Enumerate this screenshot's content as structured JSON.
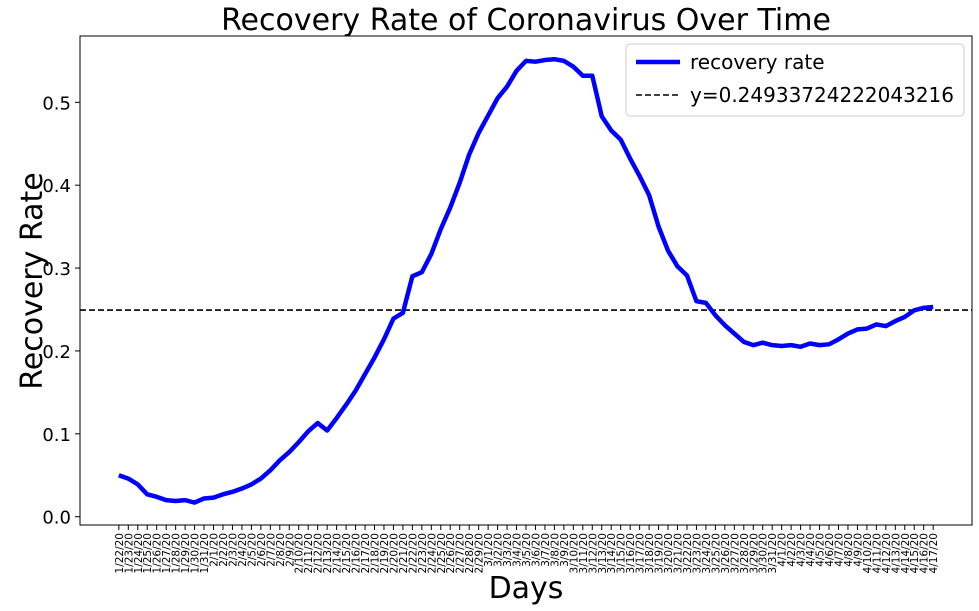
{
  "chart_data": {
    "type": "line",
    "title": "Recovery Rate of Coronavirus Over Time",
    "x_label": "Days",
    "y_label": "Recovery Rate",
    "categories": [
      "1/22/20",
      "1/23/20",
      "1/24/20",
      "1/25/20",
      "1/26/20",
      "1/27/20",
      "1/28/20",
      "1/29/20",
      "1/30/20",
      "1/31/20",
      "2/1/20",
      "2/2/20",
      "2/3/20",
      "2/4/20",
      "2/5/20",
      "2/6/20",
      "2/7/20",
      "2/8/20",
      "2/9/20",
      "2/10/20",
      "2/11/20",
      "2/12/20",
      "2/13/20",
      "2/14/20",
      "2/15/20",
      "2/16/20",
      "2/17/20",
      "2/18/20",
      "2/19/20",
      "2/20/20",
      "2/21/20",
      "2/22/20",
      "2/23/20",
      "2/24/20",
      "2/25/20",
      "2/26/20",
      "2/27/20",
      "2/28/20",
      "2/29/20",
      "3/1/20",
      "3/2/20",
      "3/3/20",
      "3/4/20",
      "3/5/20",
      "3/6/20",
      "3/7/20",
      "3/8/20",
      "3/9/20",
      "3/10/20",
      "3/11/20",
      "3/12/20",
      "3/13/20",
      "3/14/20",
      "3/15/20",
      "3/16/20",
      "3/17/20",
      "3/18/20",
      "3/19/20",
      "3/20/20",
      "3/21/20",
      "3/22/20",
      "3/23/20",
      "3/24/20",
      "3/25/20",
      "3/26/20",
      "3/27/20",
      "3/28/20",
      "3/29/20",
      "3/30/20",
      "3/31/20",
      "4/1/20",
      "4/2/20",
      "4/3/20",
      "4/4/20",
      "4/5/20",
      "4/6/20",
      "4/7/20",
      "4/8/20",
      "4/9/20",
      "4/10/20",
      "4/11/20",
      "4/12/20",
      "4/13/20",
      "4/14/20",
      "4/15/20",
      "4/16/20",
      "4/17/20"
    ],
    "series": [
      {
        "name": "recovery rate",
        "color": "#0000ff",
        "values": [
          0.05,
          0.046,
          0.039,
          0.027,
          0.024,
          0.02,
          0.019,
          0.02,
          0.017,
          0.022,
          0.023,
          0.027,
          0.03,
          0.034,
          0.039,
          0.046,
          0.056,
          0.068,
          0.078,
          0.09,
          0.103,
          0.113,
          0.104,
          0.119,
          0.135,
          0.152,
          0.172,
          0.192,
          0.214,
          0.239,
          0.246,
          0.29,
          0.295,
          0.317,
          0.347,
          0.373,
          0.403,
          0.437,
          0.463,
          0.484,
          0.505,
          0.519,
          0.538,
          0.55,
          0.549,
          0.551,
          0.552,
          0.55,
          0.543,
          0.532,
          0.532,
          0.483,
          0.466,
          0.455,
          0.432,
          0.411,
          0.388,
          0.35,
          0.321,
          0.302,
          0.291,
          0.26,
          0.258,
          0.243,
          0.231,
          0.221,
          0.211,
          0.207,
          0.21,
          0.207,
          0.206,
          0.207,
          0.205,
          0.209,
          0.207,
          0.208,
          0.214,
          0.221,
          0.226,
          0.227,
          0.232,
          0.23,
          0.236,
          0.241,
          0.249,
          0.252,
          0.253
        ]
      }
    ],
    "reference_line": {
      "name": "y=0.24933724222043216",
      "value": 0.24933724222043216,
      "color": "#000000"
    },
    "ylim": [
      -0.01,
      0.58
    ],
    "yticks": [
      {
        "value": 0,
        "label": "0.0"
      },
      0.1,
      0.2,
      0.3,
      0.4,
      0.5
    ],
    "legend": "upper right"
  }
}
